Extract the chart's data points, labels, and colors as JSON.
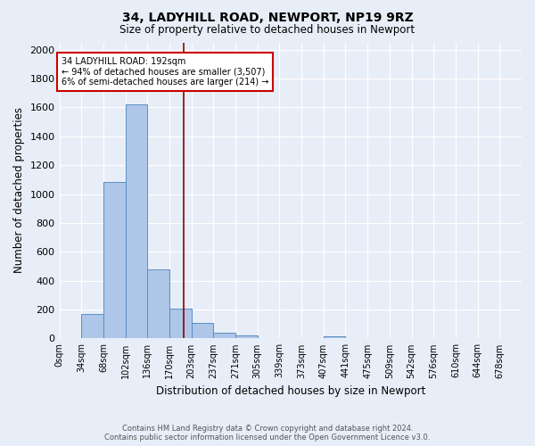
{
  "title1": "34, LADYHILL ROAD, NEWPORT, NP19 9RZ",
  "title2": "Size of property relative to detached houses in Newport",
  "xlabel": "Distribution of detached houses by size in Newport",
  "ylabel": "Number of detached properties",
  "bin_labels": [
    "0sqm",
    "34sqm",
    "68sqm",
    "102sqm",
    "136sqm",
    "170sqm",
    "203sqm",
    "237sqm",
    "271sqm",
    "305sqm",
    "339sqm",
    "373sqm",
    "407sqm",
    "441sqm",
    "475sqm",
    "509sqm",
    "542sqm",
    "576sqm",
    "610sqm",
    "644sqm",
    "678sqm"
  ],
  "bar_values": [
    0,
    170,
    1085,
    1620,
    480,
    205,
    105,
    40,
    20,
    5,
    0,
    0,
    15,
    0,
    0,
    0,
    0,
    0,
    0,
    0,
    0
  ],
  "bar_color": "#aec6e8",
  "bar_edge_color": "#5a8fc0",
  "vline_x": 5.647,
  "vline_color": "#8b0000",
  "annotation_text": "34 LADYHILL ROAD: 192sqm\n← 94% of detached houses are smaller (3,507)\n6% of semi-detached houses are larger (214) →",
  "annotation_box_color": "white",
  "annotation_box_edge": "#cc0000",
  "ylim": [
    0,
    2050
  ],
  "yticks": [
    0,
    200,
    400,
    600,
    800,
    1000,
    1200,
    1400,
    1600,
    1800,
    2000
  ],
  "bg_color": "#e8eef8",
  "plot_bg_color": "#e8eef8",
  "grid_color": "white",
  "footer1": "Contains HM Land Registry data © Crown copyright and database right 2024.",
  "footer2": "Contains public sector information licensed under the Open Government Licence v3.0."
}
